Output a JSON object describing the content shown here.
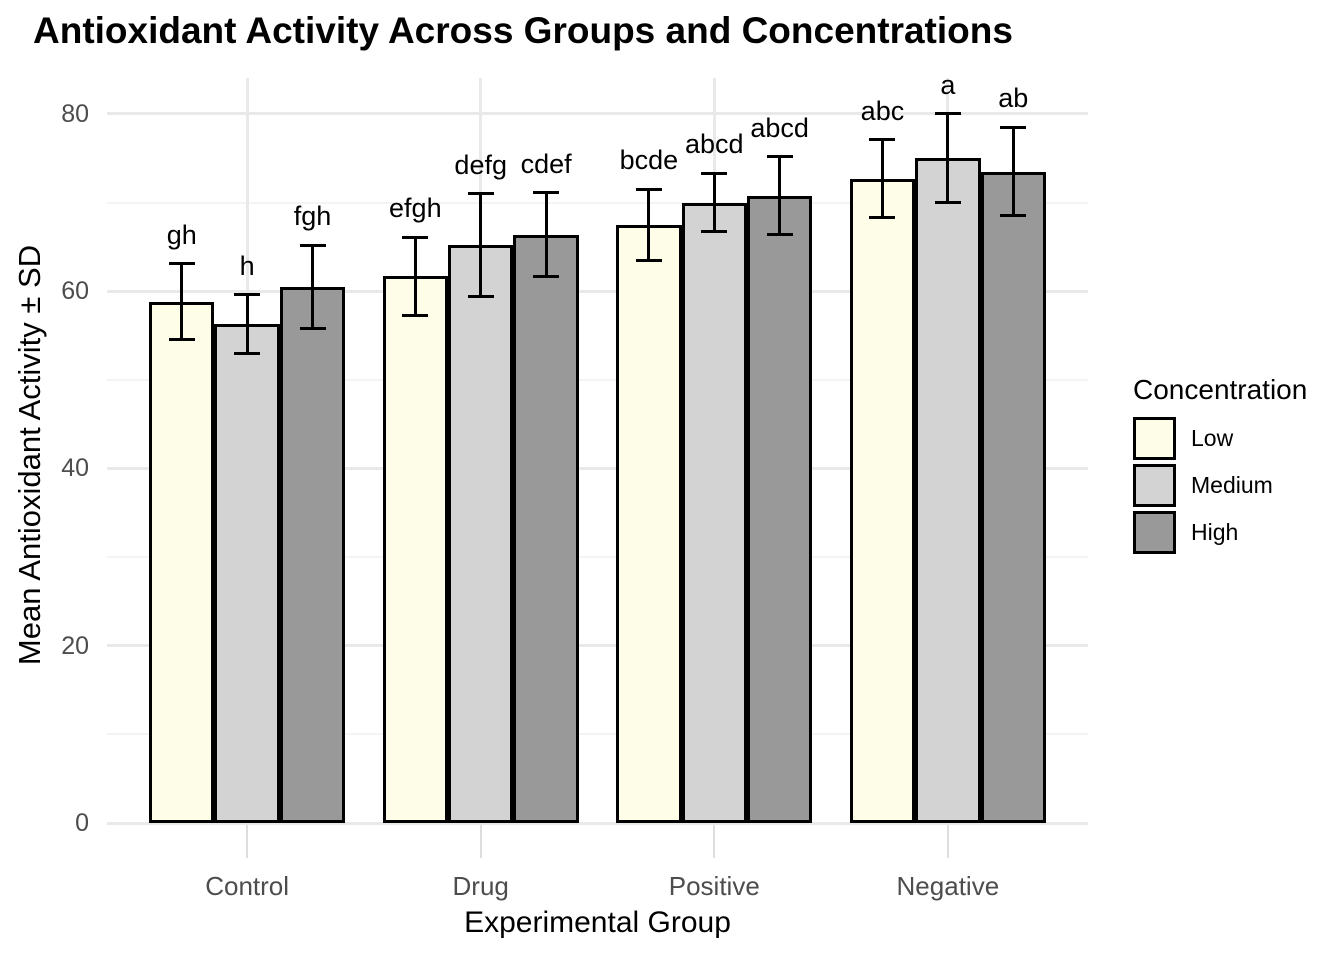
{
  "title": "Antioxidant Activity Across Groups and Concentrations",
  "chart_data": {
    "type": "bar",
    "title": "Antioxidant Activity Across Groups and Concentrations",
    "xlabel": "Experimental Group",
    "ylabel": "Mean Antioxidant Activity ± SD",
    "categories": [
      "Control",
      "Drug",
      "Positive",
      "Negative"
    ],
    "yticks": [
      0,
      20,
      40,
      60,
      80
    ],
    "yticks_minor": [
      10,
      30,
      50,
      70
    ],
    "ylim": [
      0,
      84
    ],
    "grid": "horizontal major+minor, vertical major at category centers, light gray on white",
    "error_bars": "± SD, black whiskers with caps",
    "series": [
      {
        "name": "Low",
        "color": "#fefee8",
        "values": [
          58.8,
          61.7,
          67.5,
          72.7
        ],
        "sd": [
          4.3,
          4.4,
          4.0,
          4.4
        ],
        "letters": [
          "gh",
          "efgh",
          "bcde",
          "abc"
        ]
      },
      {
        "name": "Medium",
        "color": "#d3d3d3",
        "values": [
          56.3,
          65.2,
          70.0,
          75.0
        ],
        "sd": [
          3.3,
          5.8,
          3.3,
          5.0
        ],
        "letters": [
          "h",
          "defg",
          "abcd",
          "a"
        ]
      },
      {
        "name": "High",
        "color": "#999999",
        "values": [
          60.5,
          66.4,
          70.8,
          73.5
        ],
        "sd": [
          4.7,
          4.7,
          4.4,
          5.0
        ],
        "letters": [
          "fgh",
          "cdef",
          "abcd",
          "ab"
        ]
      }
    ],
    "legend": {
      "title": "Concentration",
      "position": "right",
      "entries": [
        "Low",
        "Medium",
        "High"
      ]
    }
  },
  "colors": {
    "background": "#ffffff",
    "bar_outline": "#000000",
    "grid_major": "#e9e9e9",
    "grid_minor": "#f4f4f4",
    "axis_text": "#4d4d4d",
    "tick_mark": "#dedede"
  }
}
